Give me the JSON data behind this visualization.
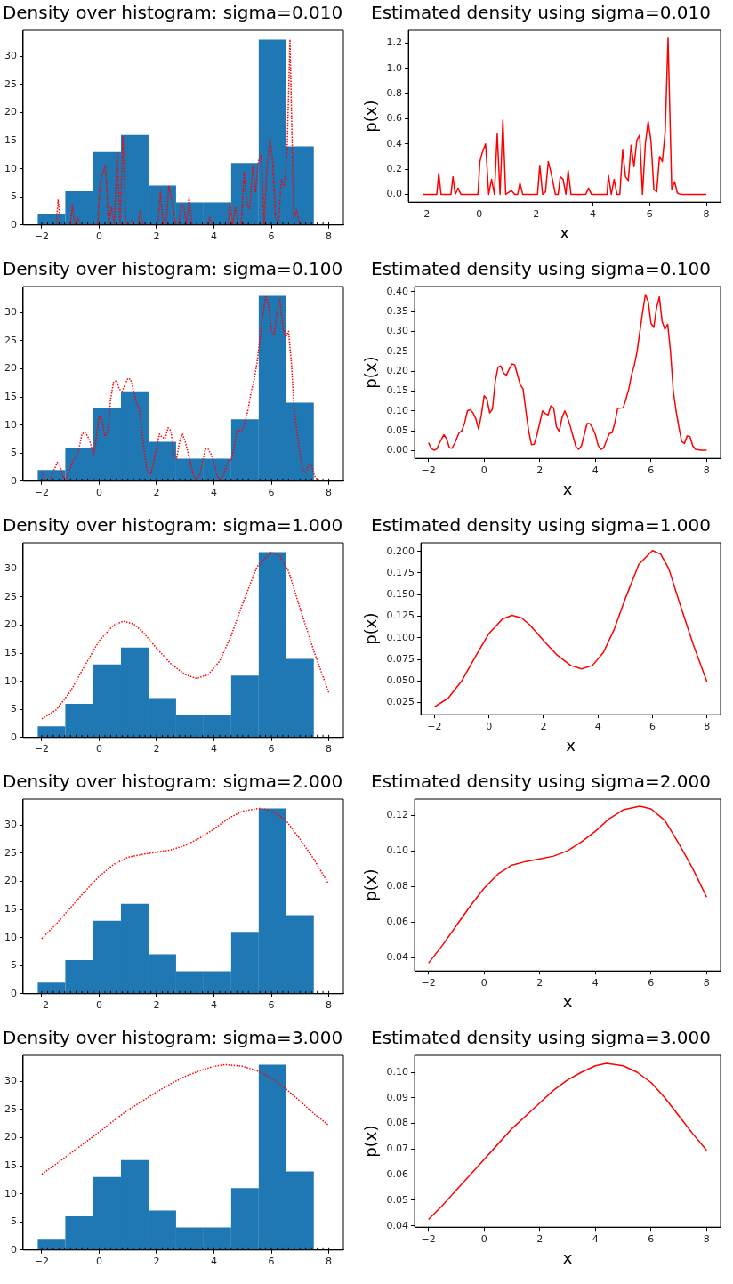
{
  "chart_data": [
    {
      "type": "histogram",
      "title": "Density over histogram: sigma=0.010",
      "bins": [
        -2.14,
        -1.18,
        -0.21,
        0.76,
        1.72,
        2.68,
        3.64,
        4.6,
        5.56,
        6.52,
        7.48
      ],
      "values": [
        2,
        6,
        13,
        16,
        7,
        4,
        4,
        11,
        33,
        14
      ],
      "color": "#1f77b4",
      "xlim": [
        -2.65,
        8.51
      ],
      "xticks": [
        -2,
        0,
        2,
        4,
        6,
        8
      ],
      "ylim": [
        0,
        34.65
      ],
      "yticks": [
        0,
        5,
        10,
        15,
        20,
        25,
        30
      ],
      "series": [
        {
          "type": "line",
          "color": "#ff0000",
          "line_style": "dotted",
          "x": [
            -1.5,
            -1.43,
            -1.35,
            -1.0,
            -0.93,
            -0.85,
            -0.75,
            -0.65,
            -0.05,
            0.02,
            0.1,
            0.22,
            0.33,
            0.43,
            0.53,
            0.63,
            0.73,
            0.83,
            0.93,
            1.13,
            1.25,
            1.35,
            1.43,
            1.53,
            2.05,
            2.13,
            2.23,
            2.33,
            2.43,
            2.53,
            2.68,
            2.78,
            2.85,
            2.95,
            3.05,
            3.13,
            3.23,
            3.75,
            3.85,
            3.95,
            4.5,
            4.55,
            4.65,
            4.75,
            4.85,
            4.95,
            5.05,
            5.15,
            5.25,
            5.35,
            5.45,
            5.55,
            5.65,
            5.75,
            5.85,
            5.95,
            6.05,
            6.15,
            6.25,
            6.35,
            6.45,
            6.55,
            6.65,
            6.78,
            6.88,
            6.98,
            7.1
          ],
          "values": [
            0,
            4.5,
            0,
            0,
            3.7,
            0,
            1.3,
            0,
            0,
            6.9,
            8.8,
            10.6,
            0,
            3.2,
            0,
            12.8,
            0,
            15.7,
            0,
            0.8,
            0,
            0,
            2.4,
            0,
            0,
            6.1,
            0,
            0.5,
            6.9,
            4.5,
            0,
            0,
            3.7,
            3.2,
            0,
            5.1,
            0,
            0,
            1.3,
            0,
            0,
            4,
            0,
            3.2,
            0,
            0,
            9.3,
            3.7,
            2.9,
            10.4,
            5.9,
            11.4,
            12.5,
            0,
            10.6,
            15.4,
            11.2,
            1.1,
            0.5,
            8,
            6.9,
            13.3,
            33,
            1.1,
            2.7,
            0.3,
            0
          ]
        },
        {
          "type": "scatter",
          "color": "#000000",
          "marker": "cross",
          "x": [
            -2,
            -1.8,
            -1.6,
            -1.4,
            -1.2,
            -1,
            -0.8,
            -0.6,
            -0.4,
            -0.2,
            0,
            0.2,
            0.4,
            0.6,
            0.8,
            1,
            1.2,
            1.4,
            1.6,
            1.8,
            2,
            2.2,
            2.4,
            2.6,
            2.8,
            3,
            3.2,
            3.4,
            3.6,
            3.8,
            4,
            4.2,
            4.4,
            4.6,
            4.8,
            5,
            5.2,
            5.4,
            5.6,
            5.8,
            6,
            6.2,
            6.4,
            6.6,
            6.8,
            7,
            7.2,
            7.4,
            7.6,
            7.8,
            8
          ],
          "values": [
            0,
            0,
            0,
            0,
            0,
            0,
            0,
            0,
            0,
            0,
            0,
            0,
            0,
            0,
            0,
            0,
            0,
            0,
            0,
            0,
            0,
            0,
            0,
            0,
            0,
            0,
            0,
            0,
            0,
            0,
            0,
            0,
            0,
            0,
            0,
            0,
            0,
            0,
            0,
            0,
            0,
            0,
            0,
            0,
            0,
            0,
            0,
            0,
            0,
            0,
            0
          ]
        }
      ]
    },
    {
      "type": "line",
      "title": "Estimated density using sigma=0.010",
      "xlabel": "x",
      "ylabel": "p(x)",
      "color": "#ff0000",
      "xlim": [
        -2.5,
        8.5
      ],
      "xticks": [
        -2,
        0,
        2,
        4,
        6,
        8
      ],
      "ylim": [
        -0.062,
        1.302
      ],
      "yticks": [
        {
          "value": 0,
          "label": "0.0"
        },
        0.2,
        0.4,
        0.6,
        0.8,
        {
          "value": 1,
          "label": "1.0"
        },
        1.2
      ],
      "x": [
        -2,
        -1.5,
        -1.43,
        -1.35,
        -1.0,
        -0.93,
        -0.85,
        -0.75,
        -0.65,
        -0.05,
        0.02,
        0.1,
        0.22,
        0.33,
        0.43,
        0.53,
        0.63,
        0.73,
        0.83,
        0.93,
        1.13,
        1.25,
        1.35,
        1.43,
        1.53,
        2.05,
        2.13,
        2.23,
        2.33,
        2.43,
        2.53,
        2.68,
        2.78,
        2.85,
        2.95,
        3.05,
        3.13,
        3.23,
        3.75,
        3.85,
        3.95,
        4.5,
        4.55,
        4.65,
        4.75,
        4.85,
        4.95,
        5.05,
        5.15,
        5.25,
        5.35,
        5.45,
        5.55,
        5.65,
        5.75,
        5.85,
        5.95,
        6.05,
        6.15,
        6.25,
        6.35,
        6.45,
        6.55,
        6.65,
        6.78,
        6.88,
        6.98,
        7.1,
        8
      ],
      "values": [
        0,
        0,
        0.17,
        0,
        0,
        0.14,
        0,
        0.05,
        0,
        0,
        0.26,
        0.33,
        0.4,
        0,
        0.12,
        0,
        0.48,
        0,
        0.59,
        0,
        0.03,
        0,
        0,
        0.09,
        0,
        0,
        0.23,
        0,
        0.02,
        0.26,
        0.17,
        0,
        0,
        0.14,
        0.12,
        0,
        0.19,
        0,
        0,
        0.05,
        0,
        0,
        0.15,
        0,
        0.12,
        0,
        0,
        0.35,
        0.14,
        0.11,
        0.39,
        0.22,
        0.43,
        0.47,
        0,
        0.4,
        0.58,
        0.42,
        0.04,
        0.02,
        0.3,
        0.26,
        0.5,
        1.24,
        0.04,
        0.1,
        0.01,
        0,
        0
      ]
    },
    {
      "type": "histogram",
      "title": "Density over histogram: sigma=0.100",
      "bins": [
        -2.14,
        -1.18,
        -0.21,
        0.76,
        1.72,
        2.68,
        3.64,
        4.6,
        5.56,
        6.52,
        7.48
      ],
      "values": [
        2,
        6,
        13,
        16,
        7,
        4,
        4,
        11,
        33,
        14
      ],
      "color": "#1f77b4",
      "xlim": [
        -2.65,
        8.51
      ],
      "xticks": [
        -2,
        0,
        2,
        4,
        6,
        8
      ],
      "ylim": [
        0,
        34.65
      ],
      "yticks": [
        0,
        5,
        10,
        15,
        20,
        25,
        30
      ],
      "series": [
        {
          "type": "line",
          "color": "#ff0000",
          "line_style": "dotted",
          "x": [
            -2,
            -1.9,
            -1.8,
            -1.7,
            -1.6,
            -1.45,
            -1.35,
            -1.25,
            -1.15,
            -1.05,
            -0.9,
            -0.8,
            -0.7,
            -0.6,
            -0.5,
            -0.4,
            -0.3,
            -0.2,
            -0.1,
            0,
            0.1,
            0.2,
            0.3,
            0.4,
            0.5,
            0.6,
            0.7,
            0.8,
            0.9,
            1,
            1.1,
            1.2,
            1.3,
            1.4,
            1.5,
            1.6,
            1.7,
            1.8,
            1.9,
            2,
            2.1,
            2.2,
            2.3,
            2.4,
            2.5,
            2.6,
            2.7,
            2.8,
            2.9,
            3,
            3.1,
            3.2,
            3.3,
            3.4,
            3.5,
            3.6,
            3.7,
            3.8,
            3.9,
            4,
            4.1,
            4.2,
            4.3,
            4.4,
            4.5,
            4.6,
            4.7,
            4.8,
            4.9,
            5,
            5.1,
            5.2,
            5.3,
            5.4,
            5.5,
            5.6,
            5.7,
            5.8,
            5.9,
            6,
            6.1,
            6.2,
            6.3,
            6.4,
            6.5,
            6.6,
            6.7,
            6.8,
            6.9,
            7,
            7.1,
            7.2,
            7.3,
            7.4,
            7.5,
            7.6,
            7.8,
            8
          ],
          "values": [
            1.7,
            0.4,
            0.1,
            0.3,
            1.7,
            3.4,
            2.5,
            0.6,
            0.5,
            1.7,
            3.8,
            4.2,
            5.9,
            8.4,
            8.7,
            8,
            6.7,
            4.5,
            7.6,
            11.6,
            10.9,
            8,
            8.8,
            14.7,
            17.6,
            17.9,
            16.4,
            16,
            17.2,
            18.3,
            18.1,
            16,
            13.9,
            13,
            8.4,
            4.2,
            1.3,
            1.3,
            3.4,
            5.9,
            8.4,
            7.8,
            7.6,
            9.5,
            9,
            5,
            4,
            7,
            8.4,
            7,
            5,
            2.9,
            0.8,
            0.3,
            1,
            3.4,
            5.7,
            5.7,
            4.8,
            3.4,
            1.1,
            0.3,
            0.6,
            2.1,
            3.6,
            3.8,
            5.9,
            8.9,
            9,
            9.1,
            10.9,
            13,
            16,
            18.1,
            21,
            25.2,
            29.4,
            33,
            31.5,
            26.9,
            26,
            30.2,
            32.5,
            27.3,
            25.6,
            26.7,
            21,
            12.6,
            8.4,
            5,
            1.9,
            1.5,
            3.1,
            2.9,
            1,
            0.3,
            0.1,
            0.1
          ]
        },
        {
          "type": "scatter",
          "color": "#000000",
          "marker": "cross",
          "x": [
            -2,
            -1.8,
            -1.6,
            -1.4,
            -1.2,
            -1,
            -0.8,
            -0.6,
            -0.4,
            -0.2,
            0,
            0.2,
            0.4,
            0.6,
            0.8,
            1,
            1.2,
            1.4,
            1.6,
            1.8,
            2,
            2.2,
            2.4,
            2.6,
            2.8,
            3,
            3.2,
            3.4,
            3.6,
            3.8,
            4,
            4.2,
            4.4,
            4.6,
            4.8,
            5,
            5.2,
            5.4,
            5.6,
            5.8,
            6,
            6.2,
            6.4,
            6.6,
            6.8,
            7,
            7.2,
            7.4,
            7.6,
            7.8,
            8
          ],
          "values": [
            0,
            0,
            0,
            0,
            0,
            0,
            0,
            0,
            0,
            0,
            0,
            0,
            0,
            0,
            0,
            0,
            0,
            0,
            0,
            0,
            0,
            0,
            0,
            0,
            0,
            0,
            0,
            0,
            0,
            0,
            0,
            0,
            0,
            0,
            0,
            0,
            0,
            0,
            0,
            0,
            0,
            0,
            0,
            0,
            0,
            0,
            0,
            0,
            0,
            0,
            0
          ]
        }
      ]
    },
    {
      "type": "line",
      "title": "Estimated density using sigma=0.100",
      "xlabel": "x",
      "ylabel": "p(x)",
      "color": "#ff0000",
      "xlim": [
        -2.5,
        8.5
      ],
      "xticks": [
        -2,
        0,
        2,
        4,
        6,
        8
      ],
      "ylim": [
        -0.0197,
        0.413
      ],
      "yticks": [
        {
          "value": 0,
          "label": "0.00"
        },
        0.05,
        {
          "value": 0.1,
          "label": "0.10"
        },
        0.15,
        {
          "value": 0.2,
          "label": "0.20"
        },
        0.25,
        {
          "value": 0.3,
          "label": "0.30"
        },
        0.35,
        {
          "value": 0.4,
          "label": "0.40"
        }
      ],
      "x": [
        -2,
        -1.9,
        -1.8,
        -1.7,
        -1.6,
        -1.45,
        -1.35,
        -1.25,
        -1.15,
        -1.05,
        -0.9,
        -0.8,
        -0.7,
        -0.6,
        -0.5,
        -0.4,
        -0.3,
        -0.2,
        -0.1,
        0,
        0.1,
        0.2,
        0.3,
        0.4,
        0.5,
        0.6,
        0.7,
        0.8,
        0.9,
        1,
        1.1,
        1.2,
        1.3,
        1.4,
        1.5,
        1.6,
        1.7,
        1.8,
        1.9,
        2,
        2.1,
        2.2,
        2.3,
        2.4,
        2.5,
        2.6,
        2.7,
        2.8,
        2.9,
        3,
        3.1,
        3.2,
        3.3,
        3.4,
        3.5,
        3.6,
        3.7,
        3.8,
        3.9,
        4,
        4.1,
        4.2,
        4.3,
        4.4,
        4.5,
        4.6,
        4.7,
        4.8,
        4.9,
        5,
        5.1,
        5.2,
        5.3,
        5.4,
        5.5,
        5.6,
        5.7,
        5.8,
        5.9,
        6,
        6.1,
        6.2,
        6.3,
        6.4,
        6.5,
        6.6,
        6.7,
        6.8,
        6.9,
        7,
        7.1,
        7.2,
        7.3,
        7.4,
        7.5,
        7.6,
        7.8,
        8
      ],
      "values": [
        0.02,
        0.005,
        0.001,
        0.004,
        0.02,
        0.04,
        0.03,
        0.007,
        0.006,
        0.02,
        0.045,
        0.05,
        0.07,
        0.1,
        0.103,
        0.095,
        0.08,
        0.054,
        0.09,
        0.138,
        0.13,
        0.095,
        0.105,
        0.175,
        0.21,
        0.213,
        0.195,
        0.19,
        0.205,
        0.218,
        0.216,
        0.19,
        0.166,
        0.155,
        0.1,
        0.05,
        0.015,
        0.016,
        0.04,
        0.07,
        0.1,
        0.093,
        0.09,
        0.113,
        0.107,
        0.06,
        0.048,
        0.083,
        0.1,
        0.083,
        0.06,
        0.035,
        0.01,
        0.003,
        0.012,
        0.04,
        0.068,
        0.068,
        0.057,
        0.04,
        0.013,
        0.003,
        0.007,
        0.025,
        0.043,
        0.045,
        0.07,
        0.106,
        0.107,
        0.108,
        0.13,
        0.155,
        0.19,
        0.215,
        0.25,
        0.3,
        0.35,
        0.393,
        0.375,
        0.32,
        0.31,
        0.36,
        0.387,
        0.325,
        0.305,
        0.318,
        0.25,
        0.15,
        0.1,
        0.06,
        0.023,
        0.018,
        0.037,
        0.035,
        0.012,
        0.003,
        0.001,
        0.001
      ]
    },
    {
      "type": "histogram",
      "title": "Density over histogram: sigma=1.000",
      "bins": [
        -2.14,
        -1.18,
        -0.21,
        0.76,
        1.72,
        2.68,
        3.64,
        4.6,
        5.56,
        6.52,
        7.48
      ],
      "values": [
        2,
        6,
        13,
        16,
        7,
        4,
        4,
        11,
        33,
        14
      ],
      "color": "#1f77b4",
      "xlim": [
        -2.65,
        8.51
      ],
      "xticks": [
        -2,
        0,
        2,
        4,
        6,
        8
      ],
      "ylim": [
        0,
        34.65
      ],
      "yticks": [
        0,
        5,
        10,
        15,
        20,
        25,
        30
      ],
      "series": [
        {
          "type": "line",
          "color": "#ff0000",
          "line_style": "dotted",
          "x": [
            -2,
            -1.5,
            -1,
            -0.5,
            0,
            0.5,
            0.85,
            1.2,
            1.5,
            2,
            2.5,
            3,
            3.4,
            3.8,
            4.2,
            4.6,
            5,
            5.5,
            6,
            6.3,
            6.6,
            7,
            7.5,
            8
          ],
          "values": [
            3.3,
            4.9,
            8.2,
            12.8,
            17.2,
            20,
            20.7,
            20.2,
            18.9,
            15.9,
            13.1,
            11.2,
            10.5,
            11.2,
            13.6,
            18.1,
            23.8,
            30.4,
            33,
            32.3,
            29.6,
            23,
            15.1,
            8
          ]
        },
        {
          "type": "scatter",
          "color": "#000000",
          "marker": "cross",
          "x": [
            -2,
            -1.8,
            -1.6,
            -1.4,
            -1.2,
            -1,
            -0.8,
            -0.6,
            -0.4,
            -0.2,
            0,
            0.2,
            0.4,
            0.6,
            0.8,
            1,
            1.2,
            1.4,
            1.6,
            1.8,
            2,
            2.2,
            2.4,
            2.6,
            2.8,
            3,
            3.2,
            3.4,
            3.6,
            3.8,
            4,
            4.2,
            4.4,
            4.6,
            4.8,
            5,
            5.2,
            5.4,
            5.6,
            5.8,
            6,
            6.2,
            6.4,
            6.6,
            6.8,
            7,
            7.2,
            7.4,
            7.6,
            7.8,
            8
          ],
          "values": [
            0,
            0,
            0,
            0,
            0,
            0,
            0,
            0,
            0,
            0,
            0,
            0,
            0,
            0,
            0,
            0,
            0,
            0,
            0,
            0,
            0,
            0,
            0,
            0,
            0,
            0,
            0,
            0,
            0,
            0,
            0,
            0,
            0,
            0,
            0,
            0,
            0,
            0,
            0,
            0,
            0,
            0,
            0,
            0,
            0,
            0,
            0,
            0,
            0,
            0,
            0
          ]
        }
      ]
    },
    {
      "type": "line",
      "title": "Estimated density using sigma=1.000",
      "xlabel": "x",
      "ylabel": "p(x)",
      "color": "#ff0000",
      "xlim": [
        -2.5,
        8.5
      ],
      "xticks": [
        -2,
        0,
        2,
        4,
        6,
        8
      ],
      "ylim": [
        0.011,
        0.21
      ],
      "yticks": [
        0.025,
        {
          "value": 0.05,
          "label": "0.050"
        },
        0.075,
        {
          "value": 0.1,
          "label": "0.100"
        },
        0.125,
        {
          "value": 0.15,
          "label": "0.150"
        },
        0.175,
        {
          "value": 0.2,
          "label": "0.200"
        }
      ],
      "x": [
        -2,
        -1.5,
        -1,
        -0.5,
        0,
        0.5,
        0.85,
        1.2,
        1.5,
        2,
        2.5,
        3,
        3.4,
        3.8,
        4.2,
        4.6,
        5,
        5.5,
        6,
        6.3,
        6.6,
        7,
        7.5,
        8
      ],
      "values": [
        0.02,
        0.03,
        0.05,
        0.078,
        0.105,
        0.122,
        0.126,
        0.123,
        0.115,
        0.097,
        0.08,
        0.068,
        0.064,
        0.068,
        0.083,
        0.11,
        0.145,
        0.185,
        0.201,
        0.197,
        0.18,
        0.14,
        0.092,
        0.049
      ]
    },
    {
      "type": "histogram",
      "title": "Density over histogram: sigma=2.000",
      "bins": [
        -2.14,
        -1.18,
        -0.21,
        0.76,
        1.72,
        2.68,
        3.64,
        4.6,
        5.56,
        6.52,
        7.48
      ],
      "values": [
        2,
        6,
        13,
        16,
        7,
        4,
        4,
        11,
        33,
        14
      ],
      "color": "#1f77b4",
      "xlim": [
        -2.65,
        8.51
      ],
      "xticks": [
        -2,
        0,
        2,
        4,
        6,
        8
      ],
      "ylim": [
        0,
        34.65
      ],
      "yticks": [
        0,
        5,
        10,
        15,
        20,
        25,
        30
      ],
      "series": [
        {
          "type": "line",
          "color": "#ff0000",
          "line_style": "dotted",
          "x": [
            -2,
            -1.5,
            -1,
            -0.5,
            0,
            0.5,
            1,
            1.5,
            2,
            2.5,
            3,
            3.5,
            4,
            4.5,
            5,
            5.6,
            6,
            6.5,
            7,
            7.5,
            8
          ],
          "values": [
            9.8,
            12.4,
            15.3,
            18.2,
            20.9,
            23,
            24.3,
            24.8,
            25.2,
            25.6,
            26.4,
            27.7,
            29.3,
            31.2,
            32.5,
            33,
            32.6,
            30.9,
            27.5,
            23.8,
            19.5
          ]
        },
        {
          "type": "scatter",
          "color": "#000000",
          "marker": "cross",
          "x": [
            -2,
            -1.8,
            -1.6,
            -1.4,
            -1.2,
            -1,
            -0.8,
            -0.6,
            -0.4,
            -0.2,
            0,
            0.2,
            0.4,
            0.6,
            0.8,
            1,
            1.2,
            1.4,
            1.6,
            1.8,
            2,
            2.2,
            2.4,
            2.6,
            2.8,
            3,
            3.2,
            3.4,
            3.6,
            3.8,
            4,
            4.2,
            4.4,
            4.6,
            4.8,
            5,
            5.2,
            5.4,
            5.6,
            5.8,
            6,
            6.2,
            6.4,
            6.6,
            6.8,
            7,
            7.2,
            7.4,
            7.6,
            7.8,
            8
          ],
          "values": [
            0,
            0,
            0,
            0,
            0,
            0,
            0,
            0,
            0,
            0,
            0,
            0,
            0,
            0,
            0,
            0,
            0,
            0,
            0,
            0,
            0,
            0,
            0,
            0,
            0,
            0,
            0,
            0,
            0,
            0,
            0,
            0,
            0,
            0,
            0,
            0,
            0,
            0,
            0,
            0,
            0,
            0,
            0,
            0,
            0,
            0,
            0,
            0,
            0,
            0,
            0
          ]
        }
      ]
    },
    {
      "type": "line",
      "title": "Estimated density using sigma=2.000",
      "xlabel": "x",
      "ylabel": "p(x)",
      "color": "#ff0000",
      "xlim": [
        -2.5,
        8.5
      ],
      "xticks": [
        -2,
        0,
        2,
        4,
        6,
        8
      ],
      "ylim": [
        0.0326,
        0.129
      ],
      "yticks": [
        0.04,
        0.06,
        0.08,
        {
          "value": 0.1,
          "label": "0.10"
        },
        0.12
      ],
      "x": [
        -2,
        -1.5,
        -1,
        -0.5,
        0,
        0.5,
        1,
        1.5,
        2,
        2.5,
        3,
        3.5,
        4,
        4.5,
        5,
        5.6,
        6,
        6.5,
        7,
        7.5,
        8
      ],
      "values": [
        0.037,
        0.047,
        0.058,
        0.069,
        0.079,
        0.087,
        0.092,
        0.094,
        0.0955,
        0.097,
        0.1,
        0.105,
        0.111,
        0.118,
        0.123,
        0.125,
        0.1235,
        0.117,
        0.104,
        0.09,
        0.074
      ]
    },
    {
      "type": "histogram",
      "title": "Density over histogram: sigma=3.000",
      "bins": [
        -2.14,
        -1.18,
        -0.21,
        0.76,
        1.72,
        2.68,
        3.64,
        4.6,
        5.56,
        6.52,
        7.48
      ],
      "values": [
        2,
        6,
        13,
        16,
        7,
        4,
        4,
        11,
        33,
        14
      ],
      "color": "#1f77b4",
      "xlim": [
        -2.65,
        8.51
      ],
      "xticks": [
        -2,
        0,
        2,
        4,
        6,
        8
      ],
      "ylim": [
        0,
        34.65
      ],
      "yticks": [
        0,
        5,
        10,
        15,
        20,
        25,
        30
      ],
      "series": [
        {
          "type": "line",
          "color": "#ff0000",
          "line_style": "dotted",
          "x": [
            -2,
            -1.5,
            -1,
            -0.5,
            0,
            0.5,
            1,
            1.5,
            2,
            2.5,
            3,
            3.5,
            4,
            4.4,
            5,
            5.5,
            6,
            6.5,
            7,
            7.5,
            8
          ],
          "values": [
            13.5,
            15.3,
            17.2,
            19.1,
            21,
            23,
            24.9,
            26.5,
            28.1,
            29.6,
            30.9,
            31.9,
            32.7,
            33,
            32.7,
            31.9,
            30.6,
            28.7,
            26.5,
            24.2,
            22.2
          ]
        },
        {
          "type": "scatter",
          "color": "#000000",
          "marker": "cross",
          "x": [
            -2,
            -1.8,
            -1.6,
            -1.4,
            -1.2,
            -1,
            -0.8,
            -0.6,
            -0.4,
            -0.2,
            0,
            0.2,
            0.4,
            0.6,
            0.8,
            1,
            1.2,
            1.4,
            1.6,
            1.8,
            2,
            2.2,
            2.4,
            2.6,
            2.8,
            3,
            3.2,
            3.4,
            3.6,
            3.8,
            4,
            4.2,
            4.4,
            4.6,
            4.8,
            5,
            5.2,
            5.4,
            5.6,
            5.8,
            6,
            6.2,
            6.4,
            6.6,
            6.8,
            7,
            7.2,
            7.4,
            7.6,
            7.8,
            8
          ],
          "values": [
            0,
            0,
            0,
            0,
            0,
            0,
            0,
            0,
            0,
            0,
            0,
            0,
            0,
            0,
            0,
            0,
            0,
            0,
            0,
            0,
            0,
            0,
            0,
            0,
            0,
            0,
            0,
            0,
            0,
            0,
            0,
            0,
            0,
            0,
            0,
            0,
            0,
            0,
            0,
            0,
            0,
            0,
            0,
            0,
            0,
            0,
            0,
            0,
            0,
            0,
            0
          ]
        }
      ]
    },
    {
      "type": "line",
      "title": "Estimated density using sigma=3.000",
      "xlabel": "x",
      "ylabel": "p(x)",
      "color": "#ff0000",
      "xlim": [
        -2.5,
        8.5
      ],
      "xticks": [
        -2,
        0,
        2,
        4,
        6,
        8
      ],
      "ylim": [
        0.0395,
        0.1066
      ],
      "yticks": [
        0.04,
        0.05,
        0.06,
        0.07,
        0.08,
        0.09,
        {
          "value": 0.1,
          "label": "0.10"
        }
      ],
      "x": [
        -2,
        -1.5,
        -1,
        -0.5,
        0,
        0.5,
        1,
        1.5,
        2,
        2.5,
        3,
        3.5,
        4,
        4.4,
        5,
        5.5,
        6,
        6.5,
        7,
        7.5,
        8
      ],
      "values": [
        0.0425,
        0.048,
        0.054,
        0.06,
        0.066,
        0.072,
        0.078,
        0.083,
        0.088,
        0.093,
        0.097,
        0.1,
        0.1025,
        0.1035,
        0.1025,
        0.1,
        0.096,
        0.09,
        0.083,
        0.076,
        0.0695
      ]
    }
  ]
}
